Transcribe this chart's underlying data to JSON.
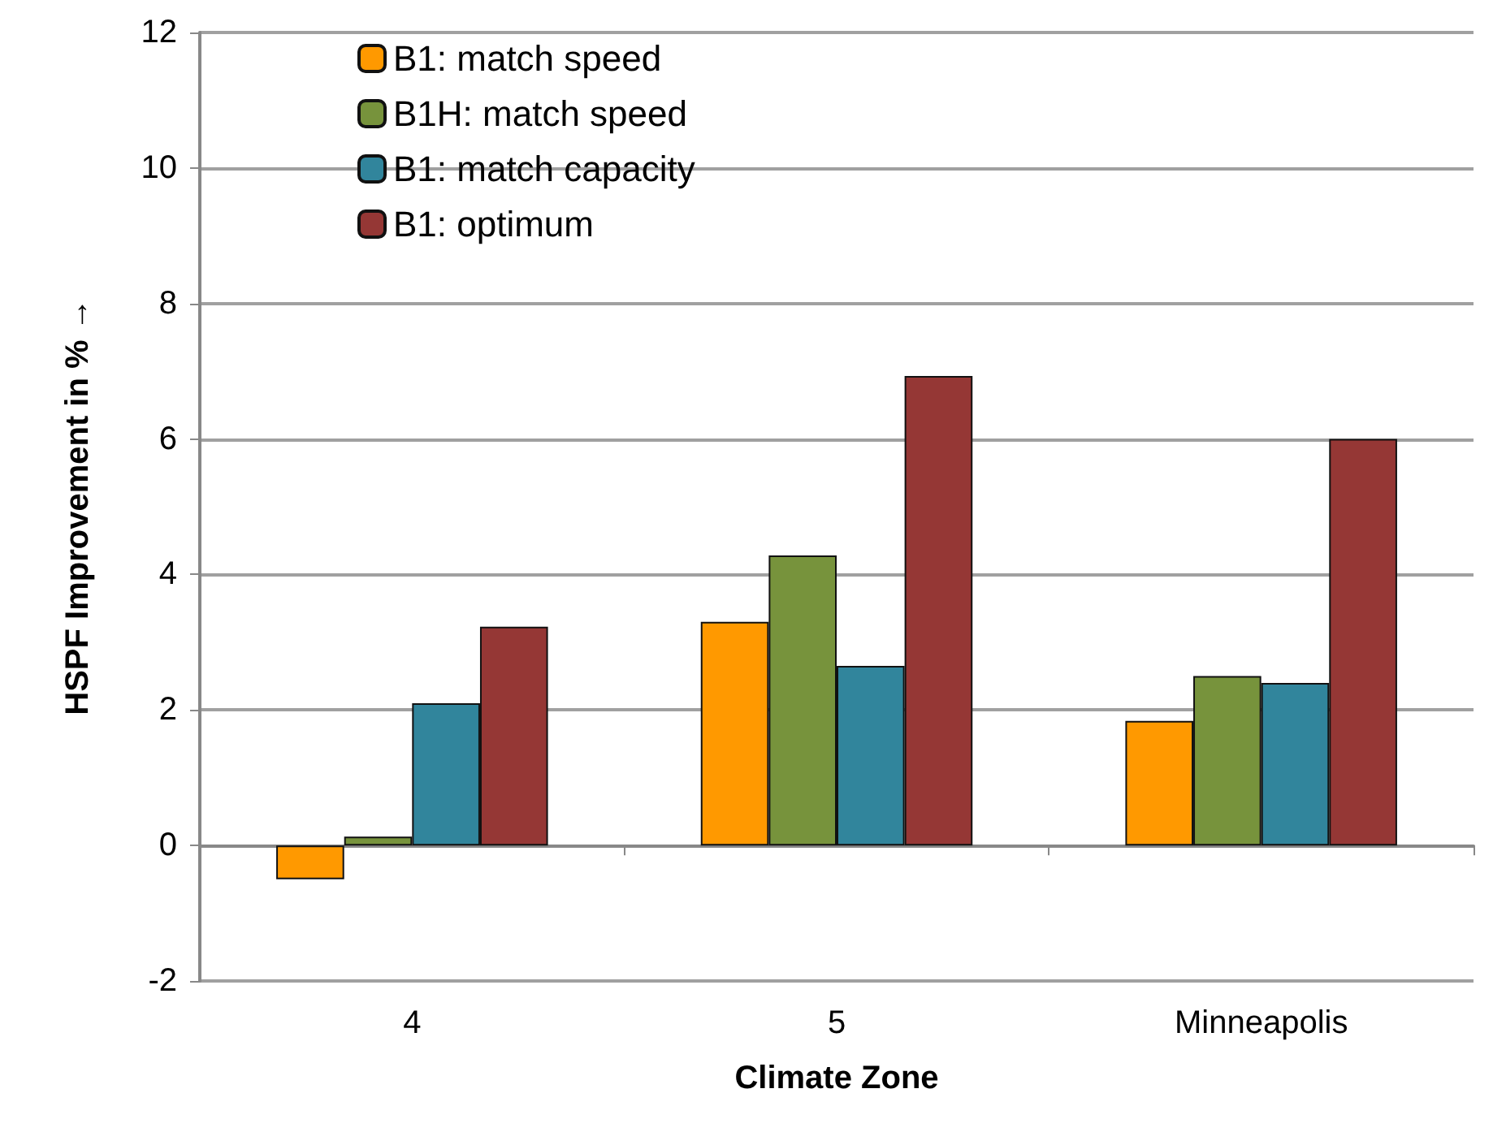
{
  "chart_data": {
    "type": "bar",
    "xlabel": "Climate Zone",
    "ylabel": "HSPF Improvement in % →",
    "categories": [
      "4",
      "5",
      "Minneapolis"
    ],
    "series": [
      {
        "name": "B1: match speed",
        "color": "#ff9900",
        "values": [
          -0.5,
          3.3,
          1.84
        ]
      },
      {
        "name": "B1H: match speed",
        "color": "#77933c",
        "values": [
          0.13,
          4.28,
          2.5
        ]
      },
      {
        "name": "B1: match capacity",
        "color": "#31859c",
        "values": [
          2.1,
          2.65,
          2.4
        ]
      },
      {
        "name": "B1: optimum",
        "color": "#953735",
        "values": [
          3.23,
          6.93,
          6.0
        ]
      }
    ],
    "ylim": [
      -2,
      12
    ],
    "yticks": [
      -2,
      0,
      2,
      4,
      6,
      8,
      10,
      12
    ],
    "grid": "y",
    "legend": "top left"
  }
}
